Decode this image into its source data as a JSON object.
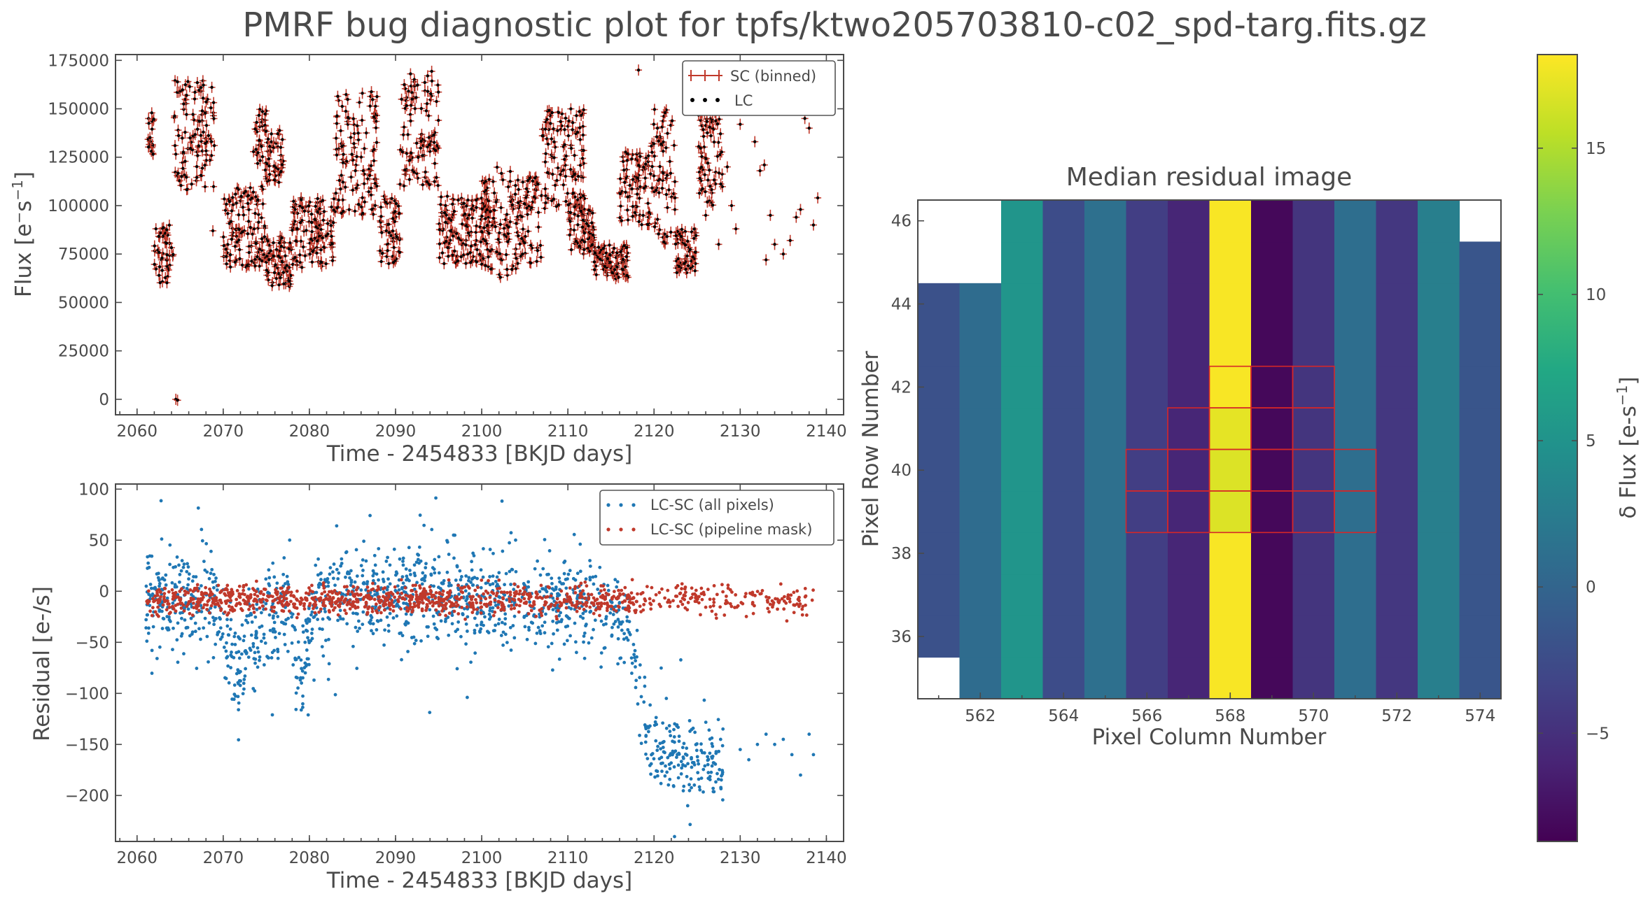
{
  "figure": {
    "title": "PMRF bug diagnostic plot for tpfs/ktwo205703810-c02_spd-targ.fits.gz"
  },
  "colors": {
    "sc": "#c0392b",
    "lc": "#000000",
    "all_pixels": "#1f77b4",
    "pipeline_mask": "#c0392b",
    "aperture": "#d62728"
  },
  "chart_data": [
    {
      "id": "flux",
      "type": "scatter",
      "xlabel": "Time - 2454833 [BKJD days]",
      "ylabel_parts": [
        "Flux [e",
        "−",
        "s",
        "−1",
        "]"
      ],
      "xlim": [
        2057.5,
        2142
      ],
      "ylim": [
        -8000,
        178000
      ],
      "xticks": [
        2060,
        2070,
        2080,
        2090,
        2100,
        2110,
        2120,
        2130,
        2140
      ],
      "yticks": [
        0,
        25000,
        50000,
        75000,
        100000,
        125000,
        150000,
        175000
      ],
      "legend": {
        "position": "upper right",
        "entries": [
          "SC (binned)",
          "LC"
        ]
      },
      "series": [
        {
          "name": "SC (binned)",
          "marker": "errorbar",
          "color": "#c0392b"
        },
        {
          "name": "LC",
          "marker": "dot",
          "color": "#000000"
        }
      ],
      "segments": [
        {
          "x": [
            2061.2,
            2062.0
          ],
          "y": [
            122000,
            148000
          ]
        },
        {
          "x": [
            2062.0,
            2064.2
          ],
          "y": [
            60000,
            90000
          ]
        },
        {
          "x": [
            2064.2,
            2069.0
          ],
          "y": [
            108000,
            165000
          ]
        },
        {
          "x": [
            2070.0,
            2075.0
          ],
          "y": [
            68000,
            110000
          ]
        },
        {
          "x": [
            2073.5,
            2075.0
          ],
          "y": [
            118000,
            150000
          ]
        },
        {
          "x": [
            2075.0,
            2078.0
          ],
          "y": [
            58000,
            85000
          ]
        },
        {
          "x": [
            2075.0,
            2077.0
          ],
          "y": [
            112000,
            140000
          ]
        },
        {
          "x": [
            2078.0,
            2083.0
          ],
          "y": [
            68000,
            105000
          ]
        },
        {
          "x": [
            2083.0,
            2088.0
          ],
          "y": [
            95000,
            160000
          ]
        },
        {
          "x": [
            2088.0,
            2090.5
          ],
          "y": [
            70000,
            105000
          ]
        },
        {
          "x": [
            2090.5,
            2095.0
          ],
          "y": [
            110000,
            170000
          ]
        },
        {
          "x": [
            2095.0,
            2101.0
          ],
          "y": [
            70000,
            105000
          ]
        },
        {
          "x": [
            2100.0,
            2104.0
          ],
          "y": [
            62000,
            120000
          ]
        },
        {
          "x": [
            2104.0,
            2107.0
          ],
          "y": [
            70000,
            115000
          ]
        },
        {
          "x": [
            2107.0,
            2112.0
          ],
          "y": [
            98000,
            150000
          ]
        },
        {
          "x": [
            2110.0,
            2113.0
          ],
          "y": [
            75000,
            100000
          ]
        },
        {
          "x": [
            2113.0,
            2117.0
          ],
          "y": [
            62000,
            80000
          ]
        },
        {
          "x": [
            2116.0,
            2119.5
          ],
          "y": [
            90000,
            128000
          ]
        },
        {
          "x": [
            2119.5,
            2122.5
          ],
          "y": [
            80000,
            150000
          ]
        },
        {
          "x": [
            2122.5,
            2125.0
          ],
          "y": [
            65000,
            88000
          ]
        },
        {
          "x": [
            2125.0,
            2128.0
          ],
          "y": [
            100000,
            150000
          ]
        }
      ],
      "sparse": [
        [
          2064.5,
          0
        ],
        [
          2064.7,
          -500
        ],
        [
          2068.8,
          87000
        ],
        [
          2118.2,
          170000
        ],
        [
          2126.0,
          95000
        ],
        [
          2127.5,
          80000
        ],
        [
          2128.5,
          120000
        ],
        [
          2129.0,
          100000
        ],
        [
          2130.0,
          142000
        ],
        [
          2131.5,
          150000
        ],
        [
          2131.7,
          133000
        ],
        [
          2132.3,
          118000
        ],
        [
          2132.8,
          121000
        ],
        [
          2133.5,
          95000
        ],
        [
          2134.0,
          80000
        ],
        [
          2135.0,
          75000
        ],
        [
          2135.8,
          82000
        ],
        [
          2136.5,
          94000
        ],
        [
          2137.0,
          98000
        ],
        [
          2137.5,
          145000
        ],
        [
          2138.0,
          140000
        ],
        [
          2138.5,
          90000
        ],
        [
          2139.0,
          104000
        ],
        [
          2129.5,
          88000
        ],
        [
          2133.0,
          72000
        ],
        [
          2126.5,
          110000
        ]
      ]
    },
    {
      "id": "residual",
      "type": "scatter",
      "xlabel": "Time - 2454833 [BKJD days]",
      "ylabel": "Residual [e-/s]",
      "xlim": [
        2057.5,
        2142
      ],
      "ylim": [
        -245,
        105
      ],
      "xticks": [
        2060,
        2070,
        2080,
        2090,
        2100,
        2110,
        2120,
        2130,
        2140
      ],
      "yticks": [
        -200,
        -150,
        -100,
        -50,
        0,
        50,
        100
      ],
      "legend": {
        "position": "upper right",
        "entries": [
          "LC-SC (all pixels)",
          "LC-SC (pipeline mask)"
        ]
      },
      "series": [
        {
          "name": "LC-SC (all pixels)",
          "color": "#1f77b4",
          "trend": [
            [
              2061,
              -5
            ],
            [
              2064,
              -8
            ],
            [
              2068,
              -5
            ],
            [
              2069.5,
              -20
            ],
            [
              2071,
              -65
            ],
            [
              2072,
              -75
            ],
            [
              2073,
              -40
            ],
            [
              2075,
              -25
            ],
            [
              2077,
              -20
            ],
            [
              2078,
              -30
            ],
            [
              2079,
              -90
            ],
            [
              2080,
              -40
            ],
            [
              2081,
              -10
            ],
            [
              2085,
              -5
            ],
            [
              2090,
              -3
            ],
            [
              2095,
              -5
            ],
            [
              2100,
              -8
            ],
            [
              2104,
              -10
            ],
            [
              2106,
              -5
            ],
            [
              2110,
              -10
            ],
            [
              2115,
              -20
            ],
            [
              2117,
              -40
            ],
            [
              2118,
              -80
            ],
            [
              2119,
              -130
            ],
            [
              2120,
              -155
            ],
            [
              2124,
              -165
            ],
            [
              2128,
              -160
            ]
          ],
          "spread": 22,
          "late_outliers": [
            [
              2130,
              -155
            ],
            [
              2131,
              -165
            ],
            [
              2132,
              -150
            ],
            [
              2133,
              -140
            ],
            [
              2134,
              -150
            ],
            [
              2135,
              -145
            ],
            [
              2136,
              -160
            ],
            [
              2137,
              -180
            ],
            [
              2138,
              -140
            ],
            [
              2138.5,
              -160
            ]
          ]
        },
        {
          "name": "LC-SC (pipeline mask)",
          "color": "#c0392b",
          "x_range": [
            2061,
            2138.5
          ],
          "level": -8,
          "spread": 7
        }
      ]
    },
    {
      "id": "residual-image",
      "type": "heatmap",
      "title": "Median residual image",
      "xlabel": "Pixel Column Number",
      "ylabel": "Pixel Row Number",
      "colorbar_label_parts": [
        "δ Flux [e-s",
        "−1",
        "]"
      ],
      "xlim": [
        561,
        575
      ],
      "ylim": [
        35,
        47
      ],
      "xticks": [
        562,
        564,
        566,
        568,
        570,
        572,
        574
      ],
      "yticks": [
        36,
        38,
        40,
        42,
        44,
        46
      ],
      "colorbar": {
        "colormap": "viridis",
        "range": [
          -8.7,
          18.2
        ],
        "ticks": [
          -5,
          0,
          5,
          10,
          15
        ],
        "tick_labels": [
          "−5",
          "0",
          "5",
          "10",
          "15"
        ]
      },
      "columns": [
        561,
        562,
        563,
        564,
        565,
        566,
        567,
        568,
        569,
        570,
        571,
        572,
        573,
        574
      ],
      "column_values": [
        -2.0,
        0.8,
        5.2,
        -2.5,
        1.2,
        -3.8,
        -5.8,
        18.0,
        -8.2,
        -4.6,
        1.0,
        -4.4,
        2.8,
        -1.6
      ],
      "missing_pixels": [
        {
          "col": 561,
          "rows": [
            35,
            45,
            46
          ]
        },
        {
          "col": 562,
          "rows": [
            45,
            46
          ]
        },
        {
          "col": 574,
          "rows": [
            46
          ]
        }
      ],
      "pipeline_aperture": [
        [
          566,
          39
        ],
        [
          566,
          40
        ],
        [
          567,
          39
        ],
        [
          567,
          40
        ],
        [
          567,
          41
        ],
        [
          568,
          39
        ],
        [
          568,
          40
        ],
        [
          568,
          41
        ],
        [
          568,
          42
        ],
        [
          569,
          39
        ],
        [
          569,
          40
        ],
        [
          569,
          41
        ],
        [
          569,
          42
        ],
        [
          570,
          39
        ],
        [
          570,
          40
        ],
        [
          570,
          41
        ],
        [
          570,
          42
        ],
        [
          571,
          39
        ],
        [
          571,
          40
        ]
      ],
      "aperture_values": [
        {
          "col": 568,
          "row": 39,
          "value": 16.8
        },
        {
          "col": 568,
          "row": 40,
          "value": 16.8
        },
        {
          "col": 568,
          "row": 41,
          "value": 17.2
        }
      ]
    }
  ]
}
